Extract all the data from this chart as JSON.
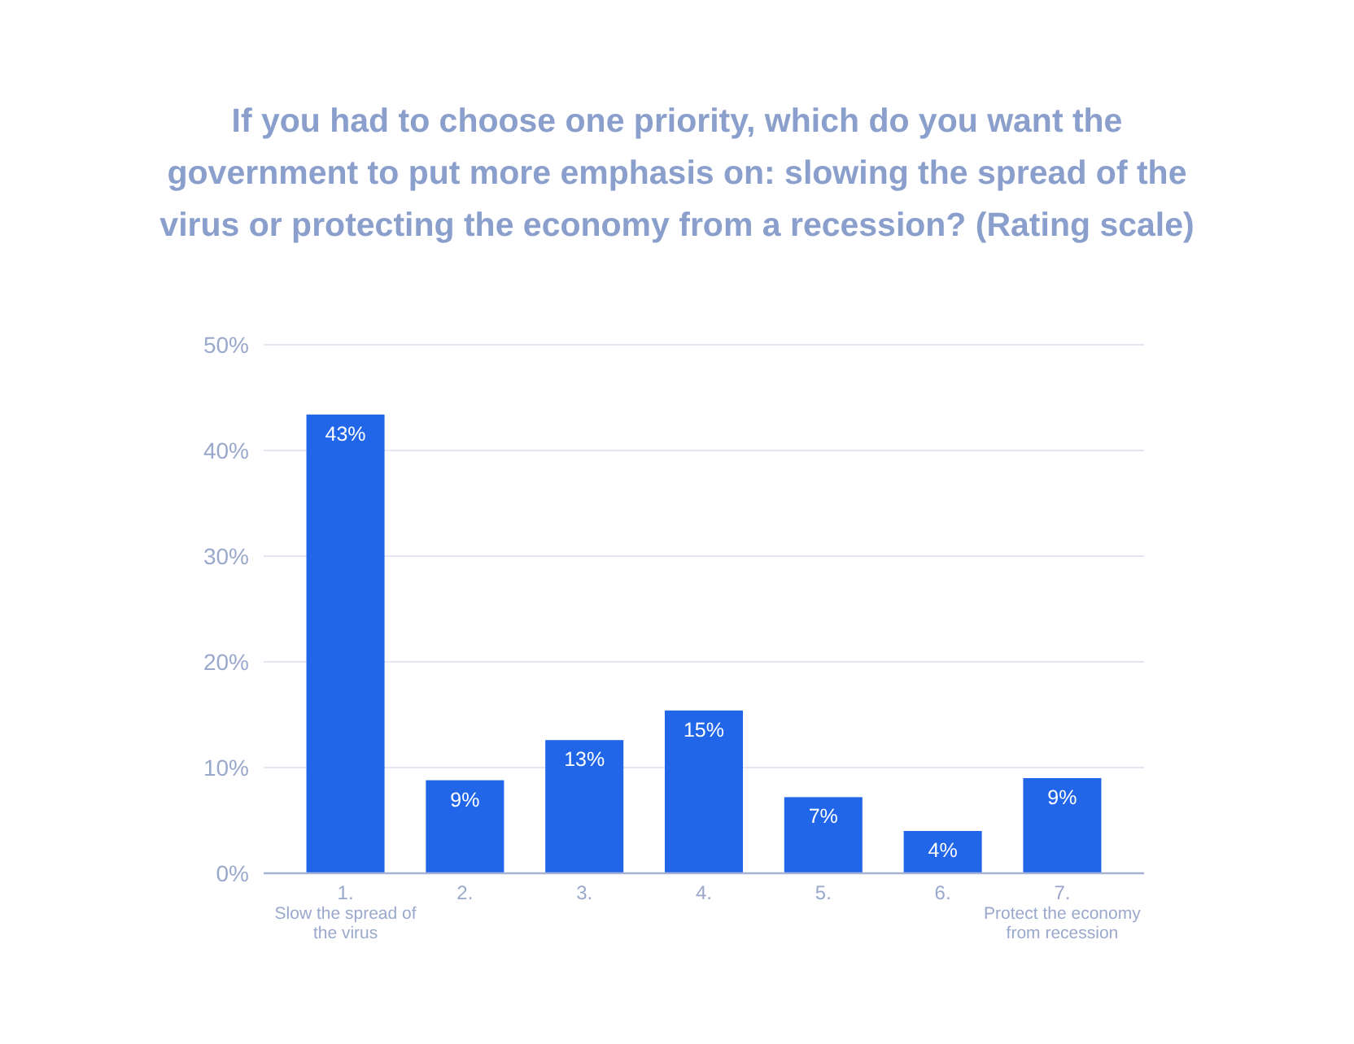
{
  "chart_data": {
    "type": "bar",
    "title": "If you had to choose one priority, which do you want the government to put more emphasis on: slowing the spread of the virus or protecting the economy from a recession? (Rating scale)",
    "categories": [
      "1.\nSlow the spread of\nthe virus",
      "2.",
      "3.",
      "4.",
      "5.",
      "6.",
      "7.\nProtect the economy\nfrom recession"
    ],
    "values": [
      43.4,
      8.8,
      12.6,
      15.4,
      7.2,
      4.0,
      9.0
    ],
    "value_labels": [
      "43%",
      "9%",
      "13%",
      "15%",
      "7%",
      "4%",
      "9%"
    ],
    "color": "#2166e8",
    "ylim": [
      0,
      50
    ],
    "yticks": [
      {
        "value": 0,
        "label": "0%"
      },
      {
        "value": 10,
        "label": "10%"
      },
      {
        "value": 20,
        "label": "20%"
      },
      {
        "value": 30,
        "label": "30%"
      },
      {
        "value": 40,
        "label": "40%"
      },
      {
        "value": 50,
        "label": "50%"
      }
    ],
    "grid": "y"
  }
}
